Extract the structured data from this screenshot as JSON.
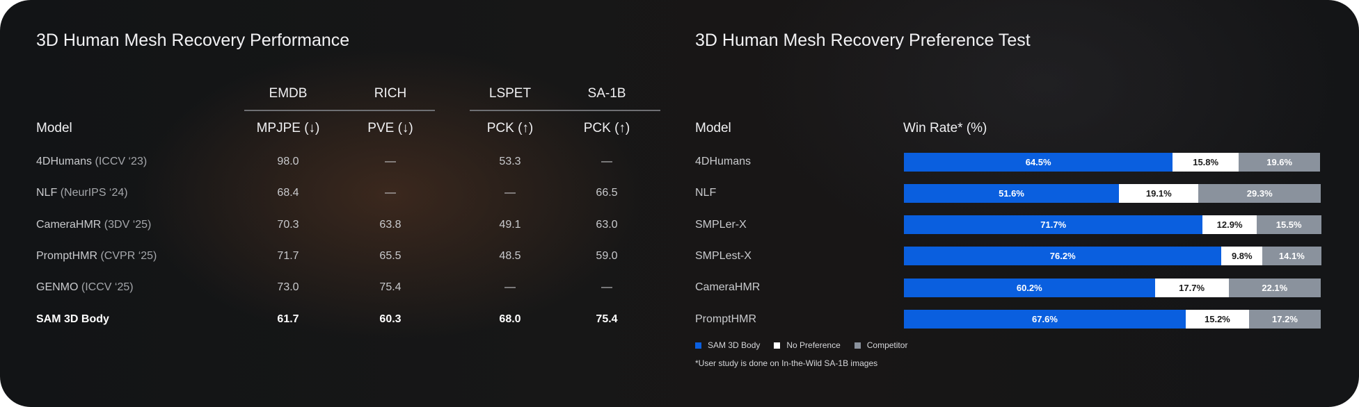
{
  "left_title": "3D Human Mesh Recovery Performance",
  "right_title": "3D Human Mesh Recovery Preference Test",
  "performance_table": {
    "model_header": "Model",
    "groups": [
      "EMDB",
      "RICH",
      "LSPET",
      "SA-1B"
    ],
    "metrics": [
      "MPJPE (↓)",
      "PVE (↓)",
      "PCK (↑)",
      "PCK (↑)"
    ],
    "rows": [
      {
        "name": "4DHumans",
        "venue": "(ICCV ‘23)",
        "values": [
          "98.0",
          "—",
          "53.3",
          "—"
        ],
        "highlight": false
      },
      {
        "name": "NLF",
        "venue": "(NeurIPS ‘24)",
        "values": [
          "68.4",
          "—",
          "—",
          "66.5"
        ],
        "highlight": false
      },
      {
        "name": "CameraHMR",
        "venue": "(3DV ‘25)",
        "values": [
          "70.3",
          "63.8",
          "49.1",
          "63.0"
        ],
        "highlight": false
      },
      {
        "name": "PromptHMR",
        "venue": "(CVPR ‘25)",
        "values": [
          "71.7",
          "65.5",
          "48.5",
          "59.0"
        ],
        "highlight": false
      },
      {
        "name": "GENMO",
        "venue": "(ICCV ‘25)",
        "values": [
          "73.0",
          "75.4",
          "—",
          "—"
        ],
        "highlight": false
      },
      {
        "name": "SAM 3D Body",
        "venue": "",
        "values": [
          "61.7",
          "60.3",
          "68.0",
          "75.4"
        ],
        "highlight": true
      }
    ]
  },
  "chart_data": {
    "type": "bar",
    "stacked": true,
    "orientation": "horizontal",
    "title": "3D Human Mesh Recovery Preference Test",
    "category_header": "Model",
    "value_header": "Win Rate* (%)",
    "categories": [
      "4DHumans",
      "NLF",
      "SMPLer-X",
      "SMPLest-X",
      "CameraHMR",
      "PromptHMR"
    ],
    "series": [
      {
        "name": "SAM 3D Body",
        "color": "#0a5fdf",
        "text_color": "#ffffff",
        "values": [
          64.5,
          51.6,
          71.7,
          76.2,
          60.2,
          67.6
        ],
        "labels": [
          "64.5%",
          "51.6%",
          "71.7%",
          "76.2%",
          "60.2%",
          "67.6%"
        ]
      },
      {
        "name": "No Preference",
        "color": "#ffffff",
        "text_color": "#1a1a1a",
        "values": [
          15.8,
          19.1,
          12.9,
          9.8,
          17.7,
          15.2
        ],
        "labels": [
          "15.8%",
          "19.1%",
          "12.9%",
          "9.8%",
          "17.7%",
          "15.2%"
        ]
      },
      {
        "name": "Competitor",
        "color": "#8a929d",
        "text_color": "#ffffff",
        "values": [
          19.6,
          29.3,
          15.5,
          14.1,
          22.1,
          17.2
        ],
        "labels": [
          "19.6%",
          "29.3%",
          "15.5%",
          "14.1%",
          "22.1%",
          "17.2%"
        ]
      }
    ],
    "xlim": [
      0,
      100
    ],
    "legend_position": "bottom-left",
    "footnote": "*User study is done on In-the-Wild SA-1B images"
  }
}
